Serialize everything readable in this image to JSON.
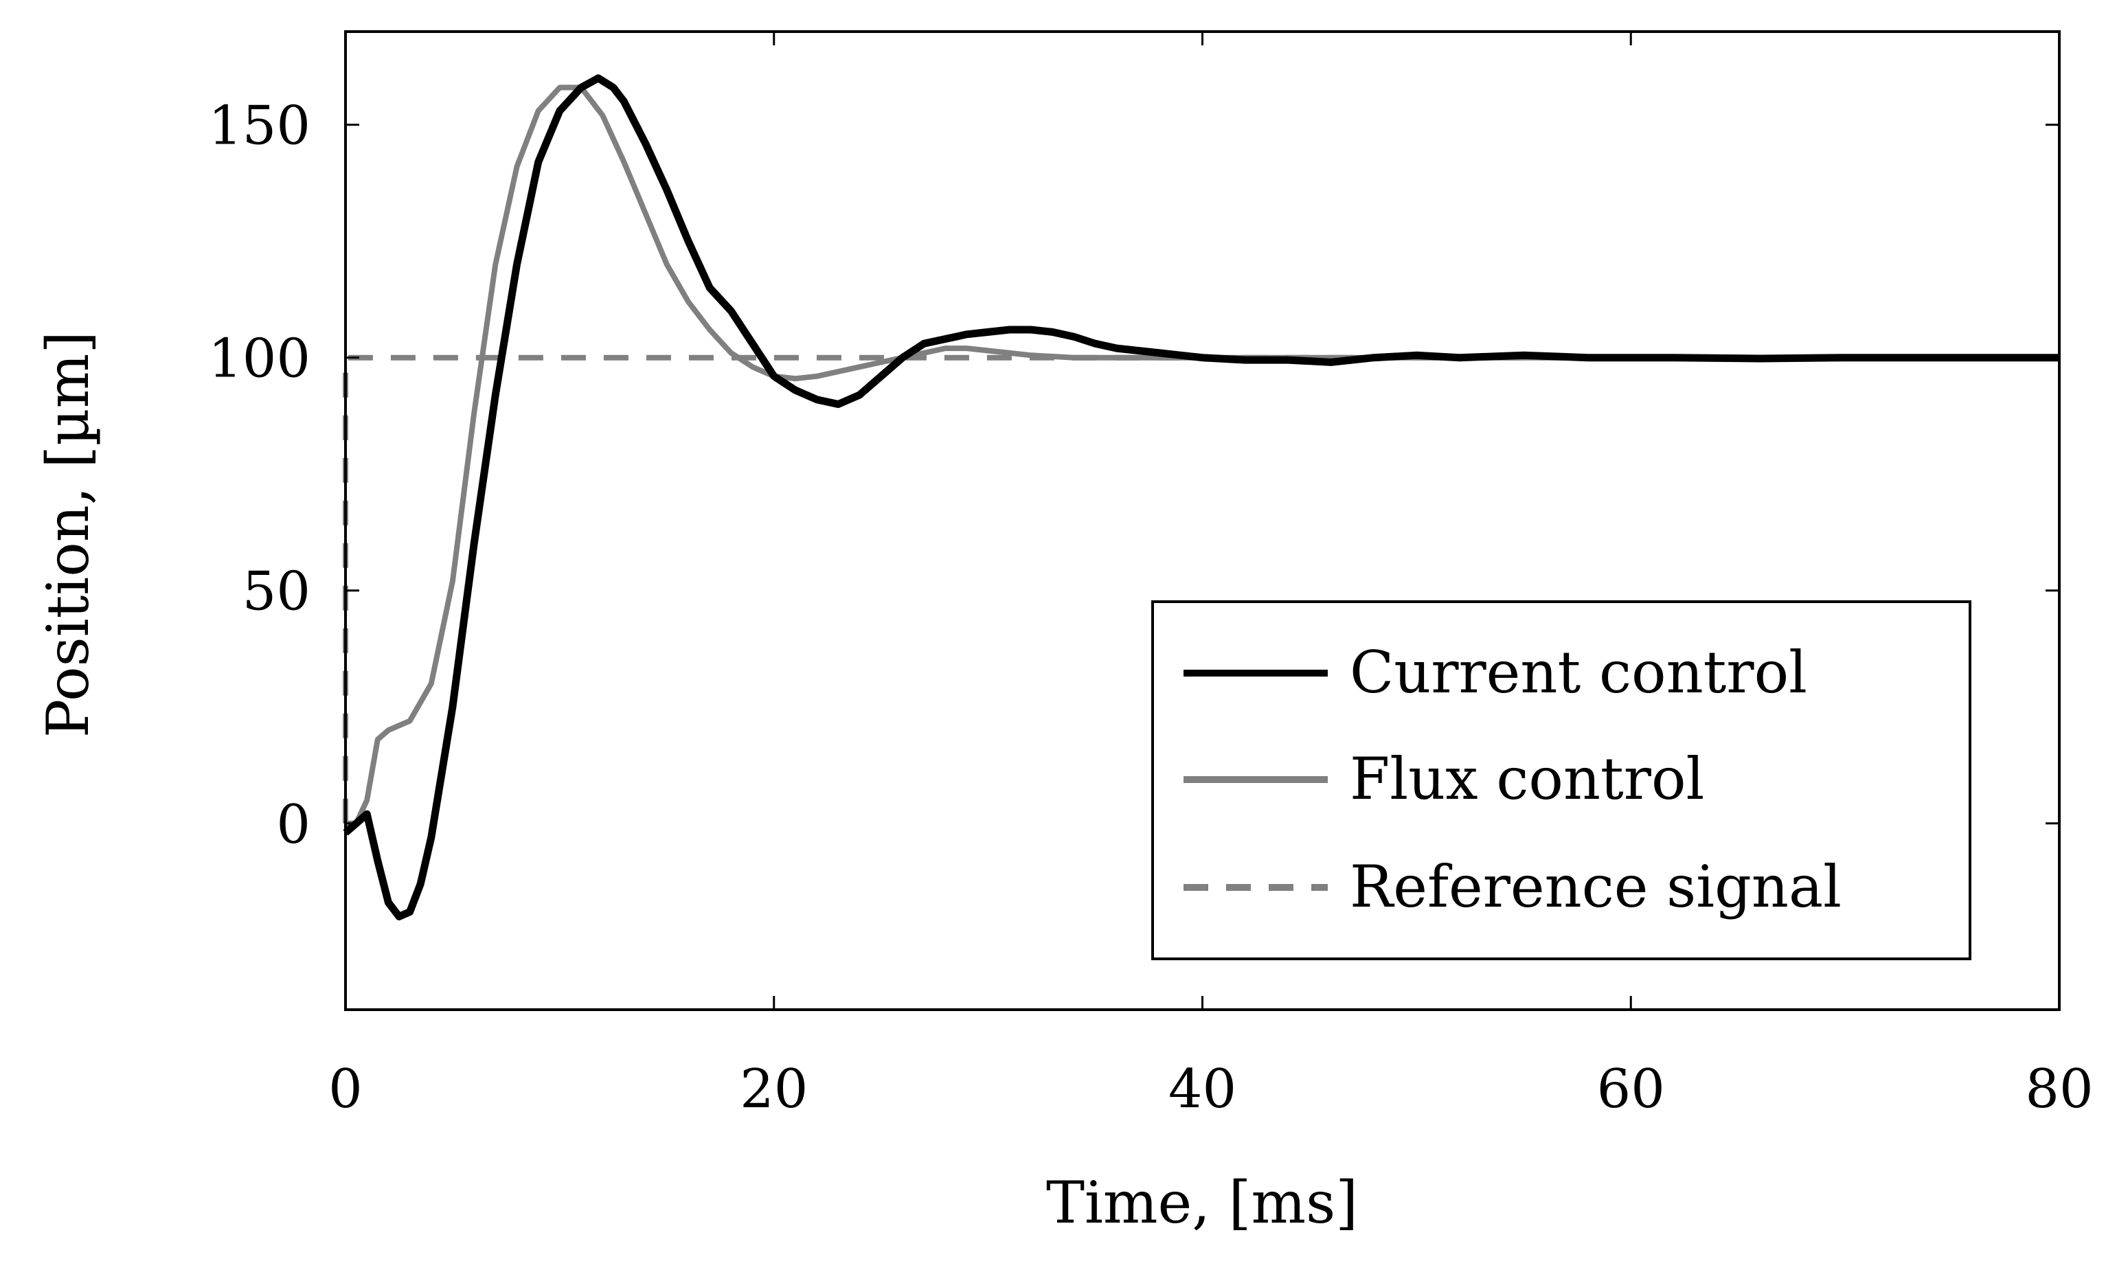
{
  "chart_data": {
    "type": "line",
    "xlabel": "Time, [ms]",
    "ylabel": "Position, [µm]",
    "xlim": [
      0,
      80
    ],
    "ylim": [
      -40,
      170
    ],
    "xticks": [
      0,
      20,
      40,
      60,
      80
    ],
    "yticks": [
      0,
      50,
      100,
      150
    ],
    "grid": false,
    "legend_position": "bottom-right",
    "series": [
      {
        "name": "Current control",
        "color": "#000000",
        "style": "solid",
        "x": [
          0,
          0.5,
          1,
          1.5,
          2,
          2.5,
          3,
          3.5,
          4,
          5,
          6,
          7,
          8,
          9,
          10,
          11,
          11.8,
          12.5,
          13,
          14,
          15,
          16,
          17,
          18,
          19,
          20,
          21,
          22,
          23,
          24,
          25,
          26,
          27,
          28,
          29,
          30,
          31,
          32,
          33,
          34,
          35,
          36,
          37,
          38,
          39,
          40,
          42,
          44,
          46,
          48,
          50,
          52,
          55,
          58,
          62,
          66,
          70,
          75,
          80
        ],
        "y": [
          -2,
          0,
          2,
          -8,
          -17,
          -20,
          -19,
          -13,
          -3,
          25,
          60,
          92,
          120,
          142,
          153,
          158,
          160,
          158,
          155,
          146,
          136,
          125,
          115,
          110,
          103,
          96,
          93,
          91,
          90,
          92,
          96,
          100,
          103,
          104,
          105,
          105.5,
          106,
          106,
          105.5,
          104.5,
          103,
          102,
          101.5,
          101,
          100.5,
          100,
          99.5,
          99.5,
          99,
          100,
          100.5,
          100,
          100.5,
          100,
          100,
          99.8,
          100,
          100,
          100
        ]
      },
      {
        "name": "Flux control",
        "color": "#808080",
        "style": "solid",
        "x": [
          0,
          0.5,
          1,
          1.5,
          2,
          3,
          4,
          5,
          6,
          7,
          8,
          9,
          10,
          11,
          12,
          13,
          14,
          15,
          16,
          17,
          18,
          19,
          20,
          21,
          22,
          23,
          24,
          25,
          26,
          27,
          28,
          29,
          30,
          31,
          32,
          34,
          36,
          38,
          40,
          45,
          50,
          55,
          60,
          65,
          70,
          75,
          80
        ],
        "y": [
          0,
          0,
          5,
          18,
          20,
          22,
          30,
          52,
          88,
          120,
          141,
          153,
          158,
          158,
          152,
          142,
          131,
          120,
          112,
          106,
          101,
          98,
          96,
          95.5,
          96,
          97,
          98,
          99,
          100,
          101,
          102,
          102,
          101.5,
          101,
          100.5,
          100,
          100,
          100,
          100,
          100,
          100,
          100,
          100,
          100,
          100,
          100,
          100
        ]
      },
      {
        "name": "Reference signal",
        "color": "#808080",
        "style": "dashed",
        "x": [
          0,
          0,
          80
        ],
        "y": [
          0,
          100,
          100
        ]
      }
    ]
  }
}
